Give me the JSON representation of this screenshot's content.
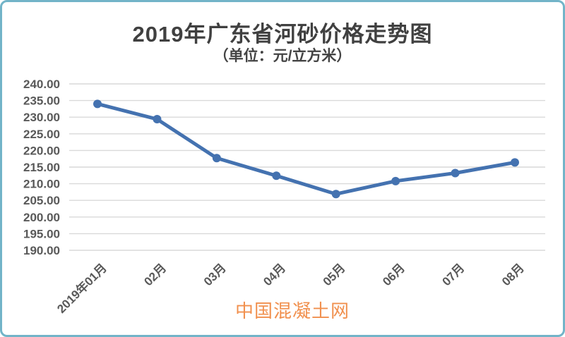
{
  "chart_data": {
    "type": "line",
    "title": "2019年广东省河砂价格走势图",
    "subtitle": "（单位：元/立方米）",
    "categories": [
      "2019年01月",
      "02月",
      "03月",
      "04月",
      "05月",
      "06月",
      "07月",
      "08月"
    ],
    "values": [
      234.0,
      229.4,
      217.7,
      212.4,
      206.9,
      210.8,
      213.2,
      216.4
    ],
    "ylim": [
      190,
      240
    ],
    "ytick_step": 5,
    "ytick_labels": [
      "240.00",
      "235.00",
      "230.00",
      "225.00",
      "220.00",
      "215.00",
      "210.00",
      "205.00",
      "200.00",
      "195.00",
      "190.00"
    ],
    "grid": true,
    "legend": "none",
    "line_color": "#4472b0",
    "grid_color": "#d9d9d9",
    "label_color": "#595959"
  },
  "watermark": {
    "text": "中国混凝土网",
    "color": "#f1904e"
  },
  "frame": {
    "border_color": "#72b4c8",
    "background": "#ffffff"
  }
}
